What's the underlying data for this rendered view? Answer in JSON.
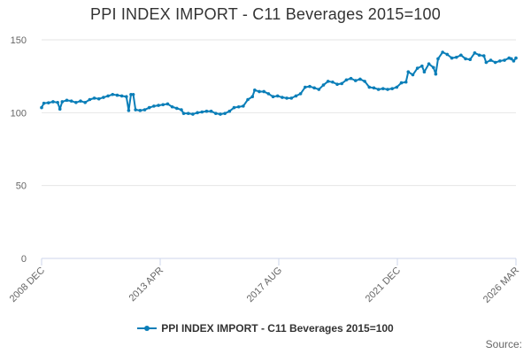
{
  "chart_data": {
    "type": "line",
    "title": "PPI INDEX IMPORT - C11 Beverages 2015=100",
    "xlabel": "",
    "ylabel": "",
    "ylim": [
      0,
      150
    ],
    "y_ticks": [
      "0",
      "50",
      "100",
      "150"
    ],
    "x_tick_labels": [
      "2008 DEC",
      "2013 APR",
      "2017 AUG",
      "2021 DEC",
      "2026 MAR"
    ],
    "x_range": [
      "2008-12",
      "2026-03"
    ],
    "grid": true,
    "legend_position": "bottom",
    "series": [
      {
        "name": "PPI INDEX IMPORT - C11 Beverages 2015=100",
        "color": "#0a7eb8",
        "points": [
          [
            "2008-12",
            103.5
          ],
          [
            "2009-01",
            106.5
          ],
          [
            "2009-03",
            106.8
          ],
          [
            "2009-05",
            107.5
          ],
          [
            "2009-07",
            107.0
          ],
          [
            "2009-08",
            102.5
          ],
          [
            "2009-09",
            107.5
          ],
          [
            "2009-11",
            108.5
          ],
          [
            "2010-01",
            108.0
          ],
          [
            "2010-03",
            107.0
          ],
          [
            "2010-05",
            108.0
          ],
          [
            "2010-07",
            107.0
          ],
          [
            "2010-09",
            109.0
          ],
          [
            "2010-11",
            110.0
          ],
          [
            "2011-01",
            109.5
          ],
          [
            "2011-03",
            110.5
          ],
          [
            "2011-05",
            111.5
          ],
          [
            "2011-07",
            112.5
          ],
          [
            "2011-09",
            112.0
          ],
          [
            "2011-11",
            111.5
          ],
          [
            "2012-01",
            111.0
          ],
          [
            "2012-02",
            101.5
          ],
          [
            "2012-03",
            112.5
          ],
          [
            "2012-04",
            112.5
          ],
          [
            "2012-05",
            102.0
          ],
          [
            "2012-07",
            101.5
          ],
          [
            "2012-09",
            102.0
          ],
          [
            "2012-11",
            103.5
          ],
          [
            "2013-01",
            104.5
          ],
          [
            "2013-03",
            105.0
          ],
          [
            "2013-05",
            105.5
          ],
          [
            "2013-07",
            106.0
          ],
          [
            "2013-09",
            104.0
          ],
          [
            "2013-11",
            103.0
          ],
          [
            "2014-01",
            102.0
          ],
          [
            "2014-02",
            99.5
          ],
          [
            "2014-04",
            99.5
          ],
          [
            "2014-06",
            99.0
          ],
          [
            "2014-08",
            100.0
          ],
          [
            "2014-10",
            100.5
          ],
          [
            "2014-12",
            101.0
          ],
          [
            "2015-02",
            101.0
          ],
          [
            "2015-04",
            99.5
          ],
          [
            "2015-06",
            99.0
          ],
          [
            "2015-08",
            99.5
          ],
          [
            "2015-10",
            101.0
          ],
          [
            "2015-12",
            103.5
          ],
          [
            "2016-02",
            104.0
          ],
          [
            "2016-04",
            104.5
          ],
          [
            "2016-06",
            109.0
          ],
          [
            "2016-08",
            111.0
          ],
          [
            "2016-09",
            115.5
          ],
          [
            "2016-11",
            114.5
          ],
          [
            "2017-01",
            114.5
          ],
          [
            "2017-03",
            113.0
          ],
          [
            "2017-05",
            111.0
          ],
          [
            "2017-07",
            111.5
          ],
          [
            "2017-09",
            110.5
          ],
          [
            "2017-11",
            110.0
          ],
          [
            "2018-01",
            110.0
          ],
          [
            "2018-03",
            111.5
          ],
          [
            "2018-05",
            113.0
          ],
          [
            "2018-07",
            117.5
          ],
          [
            "2018-09",
            118.0
          ],
          [
            "2018-11",
            117.0
          ],
          [
            "2019-01",
            116.0
          ],
          [
            "2019-03",
            119.0
          ],
          [
            "2019-05",
            121.5
          ],
          [
            "2019-07",
            121.0
          ],
          [
            "2019-09",
            119.5
          ],
          [
            "2019-11",
            120.0
          ],
          [
            "2020-01",
            122.5
          ],
          [
            "2020-03",
            123.5
          ],
          [
            "2020-05",
            122.0
          ],
          [
            "2020-07",
            123.0
          ],
          [
            "2020-09",
            121.5
          ],
          [
            "2020-11",
            117.5
          ],
          [
            "2021-01",
            117.0
          ],
          [
            "2021-03",
            116.0
          ],
          [
            "2021-05",
            116.5
          ],
          [
            "2021-07",
            116.0
          ],
          [
            "2021-09",
            116.5
          ],
          [
            "2021-11",
            117.5
          ],
          [
            "2022-01",
            120.5
          ],
          [
            "2022-03",
            121.0
          ],
          [
            "2022-04",
            128.0
          ],
          [
            "2022-06",
            126.0
          ],
          [
            "2022-08",
            130.5
          ],
          [
            "2022-10",
            132.0
          ],
          [
            "2022-11",
            128.0
          ],
          [
            "2023-01",
            133.5
          ],
          [
            "2023-03",
            131.0
          ],
          [
            "2023-04",
            126.5
          ],
          [
            "2023-05",
            137.0
          ],
          [
            "2023-07",
            141.5
          ],
          [
            "2023-09",
            140.0
          ],
          [
            "2023-11",
            137.5
          ],
          [
            "2024-01",
            138.0
          ],
          [
            "2024-03",
            139.5
          ],
          [
            "2024-05",
            137.0
          ],
          [
            "2024-07",
            136.5
          ],
          [
            "2024-09",
            141.0
          ],
          [
            "2024-11",
            139.5
          ],
          [
            "2025-01",
            139.0
          ],
          [
            "2025-02",
            134.5
          ],
          [
            "2025-04",
            136.0
          ],
          [
            "2025-06",
            134.5
          ],
          [
            "2025-08",
            135.5
          ],
          [
            "2025-10",
            136.0
          ],
          [
            "2025-12",
            137.5
          ],
          [
            "2026-01",
            137.0
          ],
          [
            "2026-02",
            135.5
          ],
          [
            "2026-03",
            137.5
          ]
        ]
      }
    ]
  },
  "legend": {
    "label": "PPI INDEX IMPORT - C11 Beverages 2015=100"
  },
  "source": {
    "label": "Source:"
  }
}
